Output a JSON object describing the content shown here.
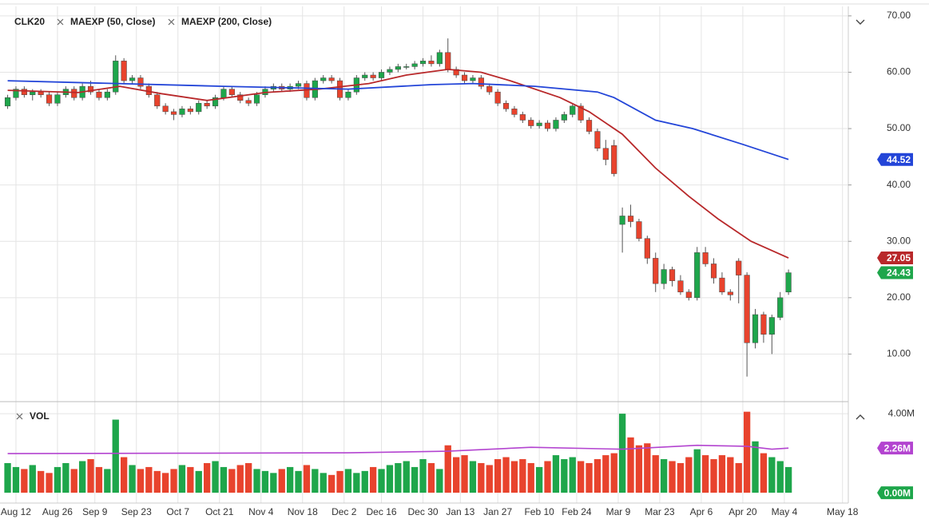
{
  "chart_data": {
    "type": "candlestick",
    "symbol": "CLK20",
    "up_color": "#1ea64b",
    "down_color": "#e8432d",
    "x": [
      -2,
      0,
      2,
      4,
      6,
      8,
      10,
      12,
      14,
      16,
      18,
      20,
      22,
      24,
      26,
      28,
      30,
      32,
      34,
      36,
      38,
      40,
      42,
      44,
      46,
      48,
      50,
      52,
      54,
      56,
      58,
      60,
      62,
      64,
      66,
      68,
      70,
      72,
      74,
      76,
      78,
      80,
      82,
      84,
      86,
      88,
      90,
      92,
      94,
      96,
      98,
      100,
      102,
      104,
      106,
      108,
      110,
      112,
      114,
      116,
      118,
      120,
      122,
      124,
      126,
      128,
      130,
      132,
      134,
      136,
      138,
      140,
      142,
      144,
      146,
      148,
      150,
      152,
      154,
      156,
      158,
      160,
      162,
      164,
      166,
      168,
      170,
      172,
      174,
      176,
      178,
      180,
      182,
      184,
      186
    ],
    "ohlc": [
      [
        54,
        56,
        53.5,
        55.5
      ],
      [
        55.5,
        57.5,
        55,
        57
      ],
      [
        57,
        57.5,
        55.5,
        56
      ],
      [
        56,
        57,
        55,
        56.5
      ],
      [
        56.5,
        57,
        55.5,
        56
      ],
      [
        56,
        56.5,
        54,
        54.5
      ],
      [
        54.5,
        56.5,
        54,
        56
      ],
      [
        56,
        57.5,
        55.5,
        57
      ],
      [
        57,
        57.5,
        55,
        55.5
      ],
      [
        55.5,
        58,
        55,
        57.5
      ],
      [
        57.5,
        58.5,
        56,
        56.5
      ],
      [
        56.5,
        57,
        55,
        55.5
      ],
      [
        55.5,
        57,
        55,
        56.5
      ],
      [
        56.5,
        63,
        56,
        62
      ],
      [
        62,
        62.5,
        58,
        58.5
      ],
      [
        58.5,
        59.5,
        58,
        59
      ],
      [
        59,
        59.5,
        57,
        57.5
      ],
      [
        57.5,
        58,
        55.5,
        56
      ],
      [
        56,
        56.5,
        53.5,
        54
      ],
      [
        54,
        54.5,
        52.5,
        53
      ],
      [
        53,
        53.5,
        51.5,
        52.5
      ],
      [
        52.5,
        54,
        52,
        53.5
      ],
      [
        53.5,
        54,
        52.5,
        53
      ],
      [
        53,
        55,
        52.5,
        54.5
      ],
      [
        54.5,
        55,
        53.5,
        54
      ],
      [
        54,
        56,
        53.5,
        55.5
      ],
      [
        55.5,
        57.5,
        55,
        57
      ],
      [
        57,
        57.5,
        55.5,
        56
      ],
      [
        56,
        56.5,
        54.5,
        55
      ],
      [
        55,
        55.5,
        54,
        54.5
      ],
      [
        54.5,
        56.5,
        54,
        56
      ],
      [
        56,
        57.5,
        55.5,
        57
      ],
      [
        57,
        58,
        56.5,
        57.5
      ],
      [
        57.5,
        58,
        56.5,
        57
      ],
      [
        57,
        58,
        56.5,
        57.5
      ],
      [
        57.5,
        58.5,
        57,
        58
      ],
      [
        58,
        58.5,
        55,
        55.5
      ],
      [
        55.5,
        59,
        55,
        58.5
      ],
      [
        58.5,
        59.5,
        58,
        59
      ],
      [
        59,
        59.5,
        58,
        58.5
      ],
      [
        58.5,
        59,
        55,
        55.5
      ],
      [
        55.5,
        57,
        55,
        56.5
      ],
      [
        56.5,
        59.5,
        56,
        59
      ],
      [
        59,
        60,
        58.5,
        59.5
      ],
      [
        59.5,
        60,
        58.5,
        59
      ],
      [
        59,
        60.5,
        58.5,
        60
      ],
      [
        60,
        61,
        59.5,
        60.5
      ],
      [
        60.5,
        61.5,
        60,
        61
      ],
      [
        61,
        61.5,
        60.5,
        61
      ],
      [
        61,
        62,
        60.5,
        61.5
      ],
      [
        61.5,
        62.5,
        61,
        62
      ],
      [
        62,
        63,
        61,
        61.5
      ],
      [
        61.5,
        64,
        61,
        63.5
      ],
      [
        63.5,
        66,
        60,
        60.5
      ],
      [
        60.5,
        61,
        59,
        59.5
      ],
      [
        59.5,
        60,
        58,
        58.5
      ],
      [
        58.5,
        59.5,
        58,
        59
      ],
      [
        59,
        59.5,
        57,
        57.5
      ],
      [
        57.5,
        58,
        56,
        56.5
      ],
      [
        56.5,
        57,
        54,
        54.5
      ],
      [
        54.5,
        55,
        53,
        53.5
      ],
      [
        53.5,
        54,
        52,
        52.5
      ],
      [
        52.5,
        53,
        51,
        51.5
      ],
      [
        51.5,
        52,
        50,
        50.5
      ],
      [
        50.5,
        51.5,
        50,
        51
      ],
      [
        51,
        51.5,
        49.5,
        50
      ],
      [
        50,
        52,
        49.5,
        51.5
      ],
      [
        51.5,
        53,
        51,
        52.5
      ],
      [
        52.5,
        54.5,
        52,
        54
      ],
      [
        54,
        54.5,
        51,
        51.5
      ],
      [
        51.5,
        52,
        49,
        49.5
      ],
      [
        49.5,
        50,
        46,
        46.5
      ],
      [
        46.5,
        48,
        43.5,
        44.5
      ],
      [
        47,
        48,
        41.5,
        42
      ],
      [
        33,
        36,
        28,
        34.5
      ],
      [
        34.5,
        36.5,
        32.5,
        33.5
      ],
      [
        33.5,
        34,
        30,
        30.5
      ],
      [
        30.5,
        31,
        26,
        27
      ],
      [
        27,
        28,
        21,
        22.5
      ],
      [
        22.5,
        26,
        21.5,
        25
      ],
      [
        25,
        25.5,
        22,
        23
      ],
      [
        23,
        24,
        20.5,
        21
      ],
      [
        21,
        21.5,
        19.5,
        20
      ],
      [
        20,
        29,
        19.5,
        28
      ],
      [
        28,
        29,
        25.5,
        26
      ],
      [
        26,
        27,
        22.5,
        23.5
      ],
      [
        23.5,
        24.5,
        20.5,
        21
      ],
      [
        21,
        21.5,
        19.5,
        20.5
      ],
      [
        26.5,
        27,
        19,
        24
      ],
      [
        24,
        24.5,
        6,
        12
      ],
      [
        12,
        18,
        11,
        17
      ],
      [
        17,
        17.5,
        12,
        13.5
      ],
      [
        13.5,
        17,
        10,
        16.5
      ],
      [
        16.5,
        21,
        16,
        20
      ],
      [
        21,
        25,
        20.5,
        24.43
      ]
    ],
    "xlim": [
      -2.3,
      200.4
    ],
    "xticks": [
      {
        "value": 0,
        "label": "Aug 12"
      },
      {
        "value": 10,
        "label": "Aug 26"
      },
      {
        "value": 19,
        "label": "Sep 9"
      },
      {
        "value": 29,
        "label": "Sep 23"
      },
      {
        "value": 39,
        "label": "Oct 7"
      },
      {
        "value": 49,
        "label": "Oct 21"
      },
      {
        "value": 59,
        "label": "Nov 4"
      },
      {
        "value": 69,
        "label": "Nov 18"
      },
      {
        "value": 79,
        "label": "Dec 2"
      },
      {
        "value": 88,
        "label": "Dec 16"
      },
      {
        "value": 98,
        "label": "Dec 30"
      },
      {
        "value": 107,
        "label": "Jan 13"
      },
      {
        "value": 116,
        "label": "Jan 27"
      },
      {
        "value": 126,
        "label": "Feb 10"
      },
      {
        "value": 135,
        "label": "Feb 24"
      },
      {
        "value": 145,
        "label": "Mar 9"
      },
      {
        "value": 155,
        "label": "Mar 23"
      },
      {
        "value": 165,
        "label": "Apr 6"
      },
      {
        "value": 175,
        "label": "Apr 20"
      },
      {
        "value": 185,
        "label": "May 4"
      },
      {
        "value": 199,
        "label": "May 18"
      }
    ],
    "ylim": [
      1.7,
      71.4
    ],
    "yticks": [
      {
        "value": 70,
        "label": "70.00"
      },
      {
        "value": 60,
        "label": "60.00"
      },
      {
        "value": 50,
        "label": "50.00"
      },
      {
        "value": 40,
        "label": "40.00"
      },
      {
        "value": 30,
        "label": "30.00"
      },
      {
        "value": 20,
        "label": "20.00"
      },
      {
        "value": 10,
        "label": "10.00"
      }
    ],
    "grid": true,
    "last_tag": 24.43,
    "lines": [
      {
        "name": "MAEXP (50, Close)",
        "color": "#b8282a",
        "tag": 27.05,
        "x": [
          -2,
          15,
          25,
          35,
          46,
          60,
          73,
          85,
          94,
          104,
          112,
          119,
          131,
          138,
          146,
          154,
          162,
          169,
          177,
          186
        ],
        "values": [
          56.8,
          56.4,
          57.5,
          56.2,
          55,
          56.4,
          57,
          58,
          59.5,
          60.5,
          60,
          58.5,
          55.5,
          53,
          49,
          43,
          38,
          34,
          30,
          27.05
        ]
      },
      {
        "name": "MAEXP (200, Close)",
        "color": "#2345d8",
        "tag": 44.52,
        "x": [
          -2,
          50,
          80,
          100,
          110,
          125,
          140,
          144,
          154,
          163,
          175,
          186
        ],
        "values": [
          58.5,
          57.5,
          57,
          57.8,
          58,
          57.5,
          56.5,
          55.5,
          51.5,
          50,
          47.2,
          44.52
        ]
      }
    ],
    "volume": {
      "name": "VOL",
      "values": [
        1.5,
        1.3,
        1.2,
        1.4,
        1.1,
        1.0,
        1.3,
        1.5,
        1.2,
        1.6,
        1.7,
        1.3,
        1.2,
        3.7,
        1.8,
        1.4,
        1.2,
        1.3,
        1.1,
        1.0,
        1.2,
        1.4,
        1.3,
        1.1,
        1.5,
        1.6,
        1.3,
        1.2,
        1.4,
        1.5,
        1.2,
        1.1,
        1.0,
        1.2,
        1.3,
        1.1,
        1.4,
        1.2,
        1.0,
        0.9,
        1.1,
        1.2,
        1.0,
        1.1,
        1.3,
        1.2,
        1.4,
        1.5,
        1.6,
        1.3,
        1.7,
        1.5,
        1.2,
        2.4,
        1.8,
        1.9,
        1.6,
        1.5,
        1.4,
        1.7,
        1.8,
        1.6,
        1.7,
        1.5,
        1.3,
        1.6,
        1.9,
        1.7,
        1.8,
        1.6,
        1.5,
        1.7,
        1.9,
        2.0,
        4.0,
        2.8,
        2.4,
        2.5,
        1.9,
        1.7,
        1.6,
        1.5,
        1.8,
        2.2,
        1.9,
        1.7,
        1.9,
        1.8,
        1.5,
        4.1,
        2.6,
        2.0,
        1.8,
        1.6,
        1.3
      ],
      "ylim": [
        -0.32,
        4.53
      ],
      "yticks": [
        {
          "value": 4,
          "label": "4.00M"
        }
      ],
      "zero_tag": {
        "value": 0,
        "label": "0.00M"
      },
      "ma": {
        "color": "#b344d0",
        "tag": {
          "value": 2.26,
          "label": "2.26M"
        },
        "x": [
          -2,
          40,
          80,
          104,
          124,
          146,
          164,
          176,
          182,
          186
        ],
        "values": [
          1.98,
          2.0,
          2.02,
          2.1,
          2.3,
          2.2,
          2.4,
          2.35,
          2.2,
          2.26
        ]
      }
    }
  }
}
